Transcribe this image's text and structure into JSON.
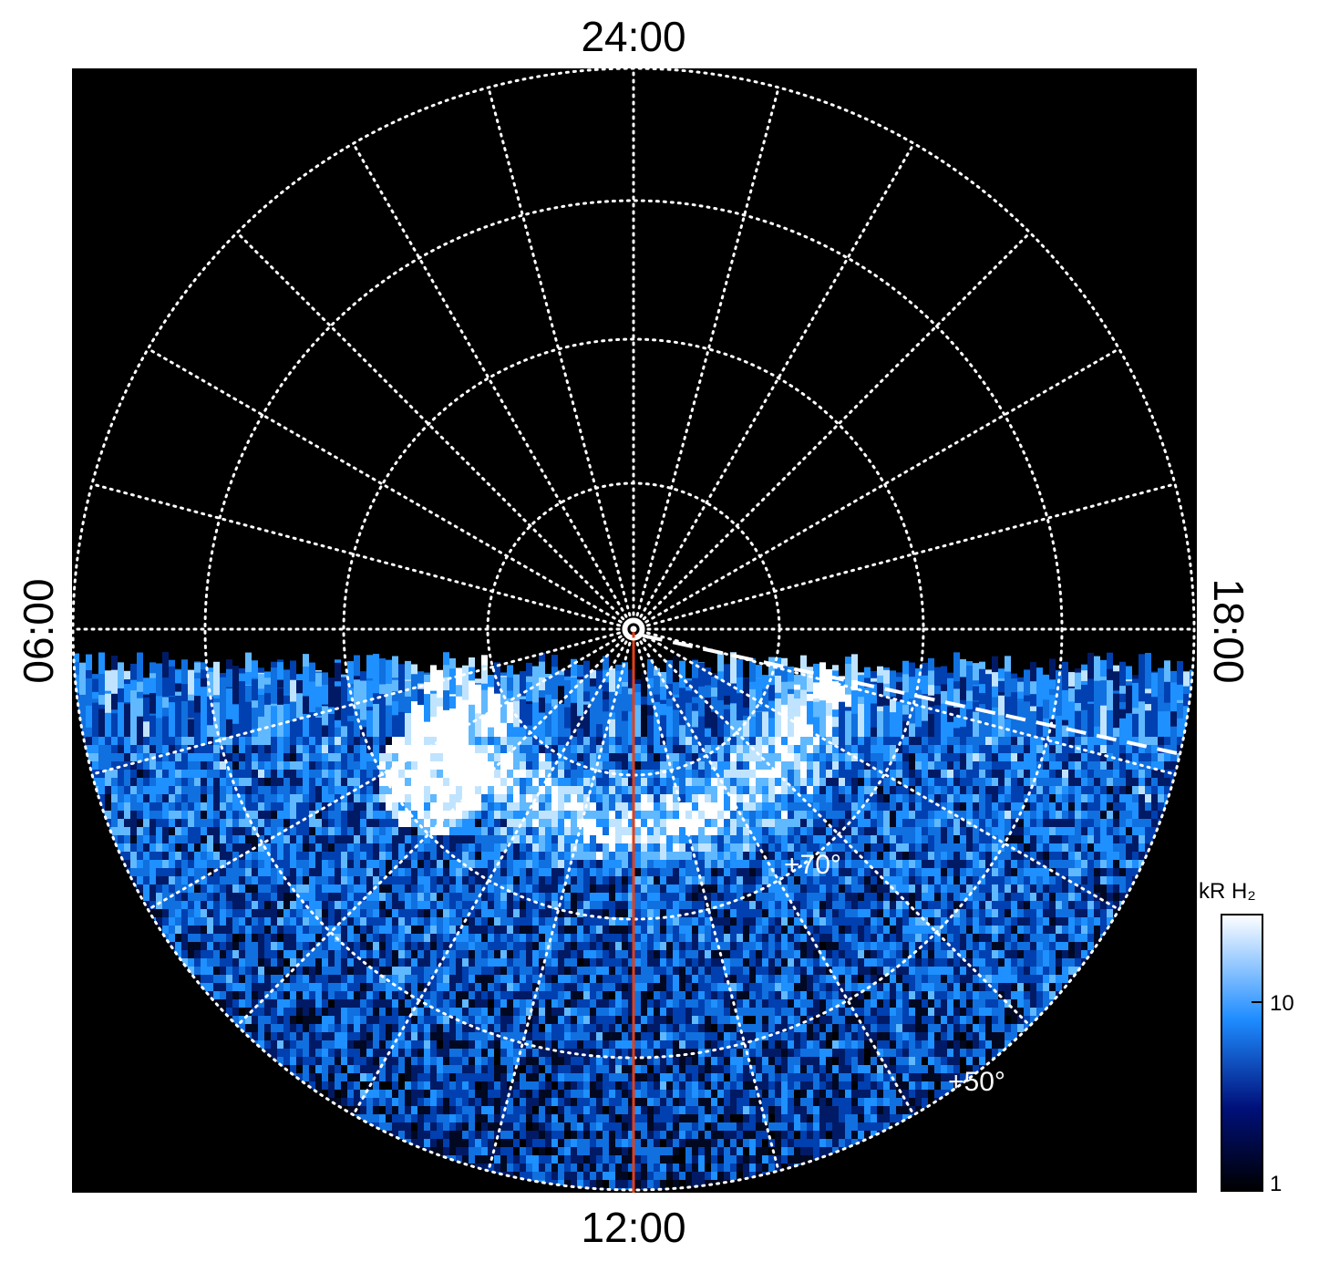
{
  "labels": {
    "top": "24:00",
    "left": "06:00",
    "right": "18:00",
    "bottom": "12:00"
  },
  "latitudes": [
    "+70°",
    "+50°"
  ],
  "colorbar": {
    "title": "kR H₂",
    "ticks": [
      10,
      1
    ]
  }
}
